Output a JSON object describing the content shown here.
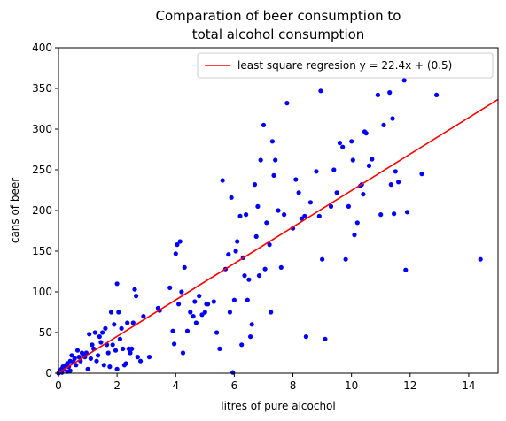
{
  "chart_data": {
    "type": "scatter",
    "title_line1": "Comparation of beer consumption to",
    "title_line2": "total alcohol consumption",
    "xlabel": "litres of pure alcochol",
    "ylabel": "cans of beer",
    "xlim": [
      0,
      15
    ],
    "ylim": [
      0,
      400
    ],
    "xticks": [
      0,
      2,
      4,
      6,
      8,
      10,
      12,
      14
    ],
    "yticks": [
      0,
      50,
      100,
      150,
      200,
      250,
      300,
      350,
      400
    ],
    "grid": false,
    "legend_position": "top-right",
    "fit_line": {
      "label": "least square regresion y = 22.4x + (0.5)",
      "slope": 22.4,
      "intercept": 0.5,
      "color": "#ff0000"
    },
    "point_color": "#0000ff",
    "points": [
      [
        0.0,
        0
      ],
      [
        0.05,
        3
      ],
      [
        0.1,
        5
      ],
      [
        0.12,
        1
      ],
      [
        0.15,
        8
      ],
      [
        0.2,
        6
      ],
      [
        0.25,
        10
      ],
      [
        0.3,
        2
      ],
      [
        0.3,
        12
      ],
      [
        0.35,
        8
      ],
      [
        0.4,
        15
      ],
      [
        0.4,
        3
      ],
      [
        0.45,
        22
      ],
      [
        0.5,
        14
      ],
      [
        0.55,
        18
      ],
      [
        0.6,
        10
      ],
      [
        0.65,
        28
      ],
      [
        0.7,
        20
      ],
      [
        0.75,
        15
      ],
      [
        0.8,
        25
      ],
      [
        0.85,
        22
      ],
      [
        0.9,
        20
      ],
      [
        0.95,
        25
      ],
      [
        1.0,
        5
      ],
      [
        1.05,
        48
      ],
      [
        1.1,
        18
      ],
      [
        1.15,
        35
      ],
      [
        1.2,
        30
      ],
      [
        1.25,
        50
      ],
      [
        1.3,
        15
      ],
      [
        1.35,
        22
      ],
      [
        1.4,
        45
      ],
      [
        1.45,
        38
      ],
      [
        1.5,
        50
      ],
      [
        1.55,
        10
      ],
      [
        1.6,
        55
      ],
      [
        1.65,
        35
      ],
      [
        1.7,
        25
      ],
      [
        1.75,
        8
      ],
      [
        1.8,
        75
      ],
      [
        1.85,
        35
      ],
      [
        1.9,
        60
      ],
      [
        1.95,
        28
      ],
      [
        2.0,
        5
      ],
      [
        2.0,
        110
      ],
      [
        2.05,
        75
      ],
      [
        2.1,
        42
      ],
      [
        2.15,
        55
      ],
      [
        2.2,
        30
      ],
      [
        2.25,
        10
      ],
      [
        2.3,
        12
      ],
      [
        2.35,
        62
      ],
      [
        2.4,
        30
      ],
      [
        2.45,
        25
      ],
      [
        2.5,
        30
      ],
      [
        2.55,
        62
      ],
      [
        2.6,
        103
      ],
      [
        2.65,
        95
      ],
      [
        2.7,
        20
      ],
      [
        2.8,
        15
      ],
      [
        2.9,
        70
      ],
      [
        3.1,
        20
      ],
      [
        3.4,
        80
      ],
      [
        3.45,
        77
      ],
      [
        3.8,
        105
      ],
      [
        3.9,
        52
      ],
      [
        3.95,
        36
      ],
      [
        4.0,
        147
      ],
      [
        4.05,
        158
      ],
      [
        4.1,
        85
      ],
      [
        4.15,
        162
      ],
      [
        4.2,
        100
      ],
      [
        4.25,
        25
      ],
      [
        4.3,
        130
      ],
      [
        4.4,
        52
      ],
      [
        4.5,
        75
      ],
      [
        4.6,
        70
      ],
      [
        4.65,
        88
      ],
      [
        4.7,
        62
      ],
      [
        4.8,
        95
      ],
      [
        4.9,
        72
      ],
      [
        5.0,
        75
      ],
      [
        5.05,
        85
      ],
      [
        5.1,
        85
      ],
      [
        5.3,
        88
      ],
      [
        5.4,
        50
      ],
      [
        5.5,
        30
      ],
      [
        5.6,
        237
      ],
      [
        5.7,
        128
      ],
      [
        5.8,
        146
      ],
      [
        5.85,
        75
      ],
      [
        5.9,
        216
      ],
      [
        5.95,
        1
      ],
      [
        6.0,
        90
      ],
      [
        6.05,
        150
      ],
      [
        6.1,
        162
      ],
      [
        6.2,
        193
      ],
      [
        6.25,
        35
      ],
      [
        6.3,
        142
      ],
      [
        6.35,
        120
      ],
      [
        6.4,
        195
      ],
      [
        6.45,
        90
      ],
      [
        6.5,
        115
      ],
      [
        6.55,
        45
      ],
      [
        6.6,
        60
      ],
      [
        6.7,
        232
      ],
      [
        6.75,
        168
      ],
      [
        6.8,
        205
      ],
      [
        6.85,
        120
      ],
      [
        6.9,
        262
      ],
      [
        7.0,
        305
      ],
      [
        7.05,
        128
      ],
      [
        7.1,
        185
      ],
      [
        7.2,
        158
      ],
      [
        7.25,
        75
      ],
      [
        7.3,
        285
      ],
      [
        7.35,
        243
      ],
      [
        7.4,
        262
      ],
      [
        7.5,
        200
      ],
      [
        7.6,
        130
      ],
      [
        7.7,
        195
      ],
      [
        7.8,
        332
      ],
      [
        8.0,
        178
      ],
      [
        8.1,
        238
      ],
      [
        8.2,
        222
      ],
      [
        8.3,
        190
      ],
      [
        8.4,
        193
      ],
      [
        8.45,
        45
      ],
      [
        8.6,
        210
      ],
      [
        8.8,
        248
      ],
      [
        8.9,
        193
      ],
      [
        8.95,
        347
      ],
      [
        9.0,
        140
      ],
      [
        9.1,
        42
      ],
      [
        9.3,
        205
      ],
      [
        9.4,
        250
      ],
      [
        9.5,
        222
      ],
      [
        9.6,
        283
      ],
      [
        9.7,
        278
      ],
      [
        9.8,
        140
      ],
      [
        9.9,
        205
      ],
      [
        10.0,
        285
      ],
      [
        10.05,
        262
      ],
      [
        10.1,
        170
      ],
      [
        10.2,
        185
      ],
      [
        10.3,
        230
      ],
      [
        10.35,
        232
      ],
      [
        10.4,
        220
      ],
      [
        10.45,
        297
      ],
      [
        10.5,
        295
      ],
      [
        10.6,
        255
      ],
      [
        10.7,
        263
      ],
      [
        10.9,
        342
      ],
      [
        11.0,
        195
      ],
      [
        11.1,
        305
      ],
      [
        11.3,
        345
      ],
      [
        11.35,
        232
      ],
      [
        11.4,
        313
      ],
      [
        11.45,
        196
      ],
      [
        11.5,
        248
      ],
      [
        11.6,
        235
      ],
      [
        11.8,
        360
      ],
      [
        11.85,
        127
      ],
      [
        11.9,
        198
      ],
      [
        12.4,
        245
      ],
      [
        12.9,
        342
      ],
      [
        14.4,
        140
      ]
    ]
  }
}
